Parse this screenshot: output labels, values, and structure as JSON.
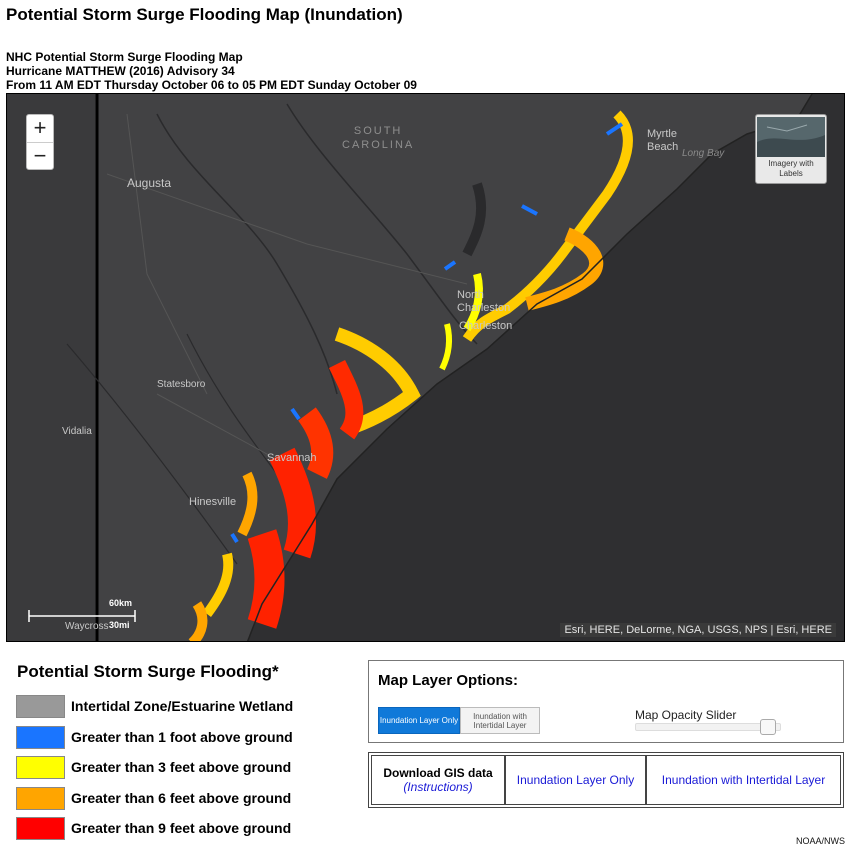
{
  "page_title": "Potential Storm Surge Flooding Map (Inundation)",
  "subheading": {
    "line1": "NHC Potential Storm Surge Flooding Map",
    "line2": "Hurricane MATTHEW (2016) Advisory 34",
    "line3": "From 11 AM EDT Thursday October 06 to 05 PM EDT Sunday October 09"
  },
  "map": {
    "zoom_in": "+",
    "zoom_out": "−",
    "imagery_toggle_label": "Imagery with Labels",
    "labels": {
      "state_line1": "SOUTH",
      "state_line2": "CAROLINA",
      "augusta": "Augusta",
      "myrtle_line1": "Myrtle",
      "myrtle_line2": "Beach",
      "long_bay": "Long Bay",
      "north_line1": "North",
      "north_line2": "Charleston",
      "charleston": "Charleston",
      "statesboro": "Statesboro",
      "vidalia": "Vidalia",
      "savannah": "Savannah",
      "hinesville": "Hinesville",
      "waycross": "Waycross"
    },
    "scale": {
      "km": "60km",
      "mi": "30mi"
    },
    "attribution": "Esri, HERE, DeLorme, NGA, USGS, NPS | Esri, HERE"
  },
  "legend": {
    "title": "Potential Storm Surge Flooding*",
    "items": [
      {
        "label": "Intertidal Zone/Estuarine Wetland",
        "color": "#999999"
      },
      {
        "label": "Greater than 1 foot above ground",
        "color": "#1a75ff"
      },
      {
        "label": "Greater than 3 feet above ground",
        "color": "#ffff00"
      },
      {
        "label": "Greater than 6 feet above ground",
        "color": "#ffa500"
      },
      {
        "label": "Greater than 9 feet above ground",
        "color": "#ff0000"
      }
    ]
  },
  "layer_options": {
    "title": "Map Layer Options:",
    "btn_inundation": "Inundation Layer Only",
    "btn_intertidal": "Inundation with Intertidal Layer",
    "slider_label": "Map Opacity Slider",
    "opacity_fraction": 0.97
  },
  "gis": {
    "download": "Download GIS data",
    "instructions": "(Instructions)",
    "inundation_only": "Inundation Layer Only",
    "with_intertidal": "Inundation with Intertidal Layer"
  },
  "credit": "NOAA/NWS"
}
